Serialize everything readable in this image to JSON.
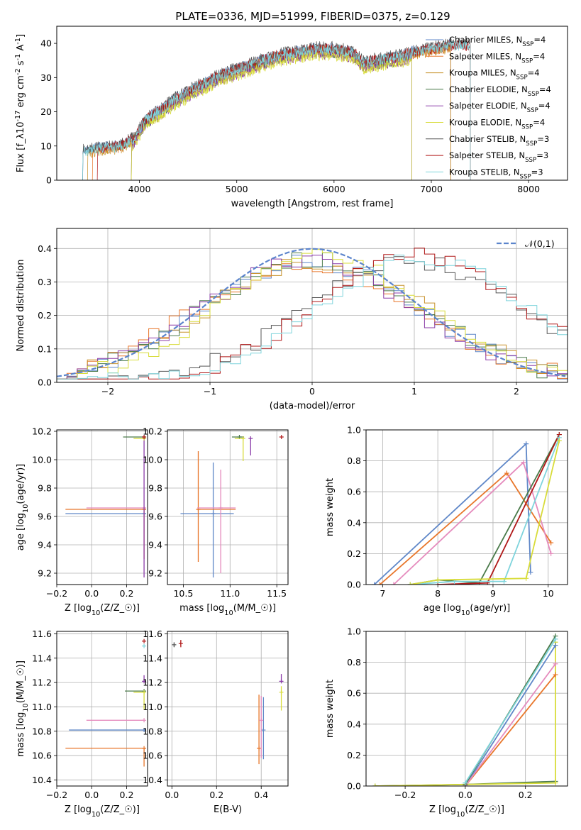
{
  "figure_title": "PLATE=0336, MJD=51999, FIBERID=0375, z=0.129",
  "chart_data": [
    {
      "id": "spectrum",
      "type": "line",
      "xlabel": "wavelength [Angstrom, rest frame]",
      "ylabel": "Flux [f$_\\lambda$10$^{-17}$ erg cm$^{-2}$ s$^{-1}$ A$^{-1}$]",
      "xlim": [
        3150,
        8400
      ],
      "ylim": [
        0,
        45
      ],
      "xticks": [
        4000,
        5000,
        6000,
        7000,
        8000
      ],
      "yticks": [
        0,
        10,
        20,
        30,
        40
      ],
      "grid": false,
      "legend_position": "top-right",
      "series": [
        {
          "name": "Chabrier MILES, N$_{SSP}$=4",
          "color": "#5f87c8",
          "start": 3400,
          "end": 7200,
          "offset": 0.3
        },
        {
          "name": "Salpeter MILES, N$_{SSP}$=4",
          "color": "#e8762a",
          "start": 3500,
          "end": 7200,
          "offset": 0.0
        },
        {
          "name": "Kroupa MILES, N$_{SSP}$=4",
          "color": "#c8922c",
          "start": 3450,
          "end": 7200,
          "offset": -0.2
        },
        {
          "name": "Chabrier ELODIE, N$_{SSP}$=4",
          "color": "#4a7a4a",
          "start": 3900,
          "end": 6800,
          "offset": -0.4
        },
        {
          "name": "Salpeter ELODIE, N$_{SSP}$=4",
          "color": "#8b3ca8",
          "start": 3900,
          "end": 6800,
          "offset": -0.6
        },
        {
          "name": "Kroupa ELODIE, N$_{SSP}$=4",
          "color": "#d8dc3a",
          "start": 3900,
          "end": 6800,
          "offset": -0.8
        },
        {
          "name": "Chabrier STELIB, N$_{SSP}$=3",
          "color": "#555555",
          "start": 3400,
          "end": 7400,
          "offset": 0.5
        },
        {
          "name": "Salpeter STELIB, N$_{SSP}$=3",
          "color": "#b01818",
          "start": 3550,
          "end": 7400,
          "offset": 0.2
        },
        {
          "name": "Kroupa STELIB, N$_{SSP}$=3",
          "color": "#7fd4dc",
          "start": 3400,
          "end": 7400,
          "offset": 0.1
        }
      ],
      "continuum": {
        "wavelength": [
          3400,
          3600,
          3800,
          3950,
          4050,
          4200,
          4400,
          4600,
          4800,
          5000,
          5200,
          5400,
          5600,
          5800,
          6000,
          6200,
          6300,
          6500,
          6700,
          6800,
          7000,
          7200,
          7400
        ],
        "flux": [
          8,
          9,
          9.5,
          12,
          17,
          20,
          24,
          27,
          30,
          32,
          34,
          36,
          37,
          38,
          38,
          37,
          34,
          35,
          36,
          37,
          38,
          39,
          39
        ]
      }
    },
    {
      "id": "residuals",
      "type": "histogram",
      "xlabel": "(data-model)/error",
      "ylabel": "Normed distribution",
      "xlim": [
        -2.5,
        2.5
      ],
      "ylim": [
        0,
        0.46
      ],
      "xticks": [
        -2,
        -1,
        0,
        1,
        2
      ],
      "yticks": [
        0.0,
        0.1,
        0.2,
        0.3,
        0.4
      ],
      "grid": true,
      "legend_position": "top-right",
      "legend_label": "$\\mathcal{N}(0,1)$",
      "reference_curve": {
        "name": "N(0,1)",
        "mean": 0,
        "sigma": 1,
        "color": "#5b84cc"
      },
      "bin_width": 0.1,
      "series": [
        {
          "color": "#5f87c8",
          "center": 0.0,
          "width": 1.05,
          "peak": 0.36
        },
        {
          "color": "#e8762a",
          "center": -0.05,
          "width": 1.1,
          "peak": 0.35
        },
        {
          "color": "#c8922c",
          "center": 0.05,
          "width": 1.08,
          "peak": 0.36
        },
        {
          "color": "#4a7a4a",
          "center": 0.0,
          "width": 1.05,
          "peak": 0.37
        },
        {
          "color": "#8b3ca8",
          "center": -0.05,
          "width": 1.05,
          "peak": 0.36
        },
        {
          "color": "#d8dc3a",
          "center": 0.1,
          "width": 1.0,
          "peak": 0.38
        },
        {
          "color": "#555555",
          "center": 1.0,
          "width": 1.05,
          "peak": 0.36
        },
        {
          "color": "#b01818",
          "center": 1.05,
          "width": 1.0,
          "peak": 0.38
        },
        {
          "color": "#7fd4dc",
          "center": 1.1,
          "width": 1.05,
          "peak": 0.37
        }
      ]
    },
    {
      "id": "age_vs_Z",
      "type": "errorbar",
      "xlabel": "Z [log$_{10}$($Z/Z_\\odot$)]",
      "ylabel": "age  [log$_{10}$($age/yr$)]",
      "xlim": [
        -0.2,
        0.32
      ],
      "ylim": [
        9.12,
        10.21
      ],
      "xticks": [
        -0.2,
        0.0,
        0.2
      ],
      "yticks": [
        9.2,
        9.4,
        9.6,
        9.8,
        10.0,
        10.2
      ],
      "grid": true,
      "points": [
        {
          "color": "#5f87c8",
          "x": 0.3,
          "y": 9.62,
          "xerr": [
            0.45,
            0.01
          ],
          "yerr": [
            0.0,
            0.0
          ]
        },
        {
          "color": "#e8762a",
          "x": 0.3,
          "y": 9.65,
          "xerr": [
            0.45,
            0.01
          ],
          "yerr": [
            0.35,
            0.0
          ]
        },
        {
          "color": "#e58bbd",
          "x": 0.3,
          "y": 9.66,
          "xerr": [
            0.33,
            0.0
          ],
          "yerr": [
            0.0,
            0.0
          ]
        },
        {
          "color": "#4a7a4a",
          "x": 0.3,
          "y": 10.16,
          "xerr": [
            0.12,
            0.0
          ],
          "yerr": [
            0.0,
            0.0
          ]
        },
        {
          "color": "#8b3ca8",
          "x": 0.3,
          "y": 10.15,
          "xerr": [
            0.0,
            0.0
          ],
          "yerr": [
            0.98,
            0.0
          ]
        },
        {
          "color": "#d8dc3a",
          "x": 0.3,
          "y": 10.15,
          "xerr": [
            0.06,
            0.0
          ],
          "yerr": [
            0.0,
            0.0
          ]
        },
        {
          "color": "#b01818",
          "x": 0.3,
          "y": 10.16,
          "xerr": [
            0.0,
            0.0
          ],
          "yerr": [
            0.0,
            0.0
          ]
        }
      ]
    },
    {
      "id": "age_vs_mass",
      "type": "errorbar",
      "xlabel": "mass [log$_{10}$($M/M_\\odot$)]",
      "ylabel": "",
      "xlim": [
        10.33,
        11.62
      ],
      "ylim": [
        9.12,
        10.21
      ],
      "xticks": [
        10.5,
        11.0,
        11.5
      ],
      "yticks": [
        9.2,
        9.4,
        9.6,
        9.8,
        10.0,
        10.2
      ],
      "grid": true,
      "points": [
        {
          "color": "#5f87c8",
          "x": 10.82,
          "y": 9.62,
          "xerr": [
            0.35,
            0.22
          ],
          "yerr": [
            0.45,
            0.36
          ]
        },
        {
          "color": "#e8762a",
          "x": 10.66,
          "y": 9.65,
          "xerr": [
            0.02,
            0.4
          ],
          "yerr": [
            0.37,
            0.41
          ]
        },
        {
          "color": "#e58bbd",
          "x": 10.9,
          "y": 9.66,
          "xerr": [
            0.25,
            0.16
          ],
          "yerr": [
            0.46,
            0.27
          ]
        },
        {
          "color": "#4a7a4a",
          "x": 11.1,
          "y": 10.16,
          "xerr": [
            0.08,
            0.05
          ],
          "yerr": [
            0.0,
            0.0
          ]
        },
        {
          "color": "#8b3ca8",
          "x": 11.22,
          "y": 10.15,
          "xerr": [
            0.0,
            0.0
          ],
          "yerr": [
            0.12,
            0.0
          ]
        },
        {
          "color": "#d8dc3a",
          "x": 11.14,
          "y": 10.15,
          "xerr": [
            0.09,
            0.0
          ],
          "yerr": [
            0.16,
            0.0
          ]
        },
        {
          "color": "#b01818",
          "x": 11.55,
          "y": 10.16,
          "xerr": [
            0.0,
            0.0
          ],
          "yerr": [
            0.0,
            0.0
          ]
        }
      ]
    },
    {
      "id": "weight_vs_age",
      "type": "line",
      "xlabel": "age  [log$_{10}$($age/yr$)]",
      "ylabel": "mass weight",
      "xlim": [
        6.7,
        10.35
      ],
      "ylim": [
        0,
        1.0
      ],
      "xticks": [
        7,
        8,
        9,
        10
      ],
      "yticks": [
        0.0,
        0.2,
        0.4,
        0.6,
        0.8,
        1.0
      ],
      "grid": true,
      "series": [
        {
          "color": "#5f87c8",
          "x": [
            6.85,
            9.6,
            9.68
          ],
          "y": [
            0.0,
            0.91,
            0.08
          ]
        },
        {
          "color": "#e8762a",
          "x": [
            6.95,
            9.25,
            10.05
          ],
          "y": [
            0.0,
            0.72,
            0.27
          ]
        },
        {
          "color": "#e58bbd",
          "x": [
            7.2,
            9.55,
            10.05
          ],
          "y": [
            0.0,
            0.79,
            0.2
          ]
        },
        {
          "color": "#4a7a4a",
          "x": [
            7.5,
            8.0,
            8.75,
            10.2
          ],
          "y": [
            0.0,
            0.03,
            0.01,
            0.97
          ]
        },
        {
          "color": "#b01818",
          "x": [
            8.0,
            8.9,
            10.2
          ],
          "y": [
            0.0,
            0.01,
            0.97
          ]
        },
        {
          "color": "#7fd4dc",
          "x": [
            7.5,
            8.3,
            9.2,
            10.2
          ],
          "y": [
            0.0,
            0.02,
            0.02,
            0.95
          ]
        },
        {
          "color": "#d8dc3a",
          "x": [
            7.5,
            8.0,
            9.6,
            10.2
          ],
          "y": [
            0.0,
            0.03,
            0.04,
            0.93
          ]
        }
      ]
    },
    {
      "id": "mass_vs_Z",
      "type": "errorbar",
      "xlabel": "Z [log$_{10}$($Z/Z_\\odot$)]",
      "ylabel": "mass [log$_{10}$($M/M_\\odot$)]",
      "xlim": [
        -0.2,
        0.32
      ],
      "ylim": [
        10.35,
        11.62
      ],
      "xticks": [
        -0.2,
        0.0,
        0.2
      ],
      "yticks": [
        10.4,
        10.6,
        10.8,
        11.0,
        11.2,
        11.4,
        11.6
      ],
      "grid": true,
      "points": [
        {
          "color": "#5f87c8",
          "x": 0.3,
          "y": 10.81,
          "xerr": [
            0.43,
            0.01
          ],
          "yerr": [
            0.0,
            0.0
          ]
        },
        {
          "color": "#e8762a",
          "x": 0.3,
          "y": 10.66,
          "xerr": [
            0.45,
            0.01
          ],
          "yerr": [
            0.15,
            0.0
          ]
        },
        {
          "color": "#e58bbd",
          "x": 0.3,
          "y": 10.89,
          "xerr": [
            0.33,
            0.0
          ],
          "yerr": [
            0.0,
            0.0
          ]
        },
        {
          "color": "#4a7a4a",
          "x": 0.3,
          "y": 11.13,
          "xerr": [
            0.11,
            0.0
          ],
          "yerr": [
            0.0,
            0.0
          ]
        },
        {
          "color": "#8b3ca8",
          "x": 0.3,
          "y": 11.21,
          "xerr": [
            0.0,
            0.0
          ],
          "yerr": [
            0.0,
            0.05
          ]
        },
        {
          "color": "#d8dc3a",
          "x": 0.3,
          "y": 11.12,
          "xerr": [
            0.06,
            0.0
          ],
          "yerr": [
            0.14,
            0.0
          ]
        },
        {
          "color": "#b01818",
          "x": 0.3,
          "y": 11.54,
          "xerr": [
            0.0,
            0.0
          ],
          "yerr": [
            0.0,
            0.0
          ]
        },
        {
          "color": "#7fd4dc",
          "x": 0.3,
          "y": 11.5,
          "xerr": [
            0.0,
            0.0
          ],
          "yerr": [
            0.0,
            0.0
          ]
        }
      ]
    },
    {
      "id": "mass_vs_ebv",
      "type": "errorbar",
      "xlabel": "E(B-V)",
      "ylabel": "",
      "xlim": [
        -0.02,
        0.52
      ],
      "ylim": [
        10.35,
        11.62
      ],
      "xticks": [
        0.0,
        0.2,
        0.4
      ],
      "yticks": [
        10.4,
        10.6,
        10.8,
        11.0,
        11.2,
        11.4,
        11.6
      ],
      "grid": true,
      "points": [
        {
          "color": "#5f87c8",
          "x": 0.41,
          "y": 10.81,
          "xerr": [
            0.0,
            0.0
          ],
          "yerr": [
            0.24,
            0.27
          ]
        },
        {
          "color": "#e8762a",
          "x": 0.39,
          "y": 10.66,
          "xerr": [
            0.0,
            0.0
          ],
          "yerr": [
            0.13,
            0.44
          ]
        },
        {
          "color": "#e58bbd",
          "x": 0.4,
          "y": 10.89,
          "xerr": [
            0.0,
            0.0
          ],
          "yerr": [
            0.31,
            0.2
          ]
        },
        {
          "color": "#8b3ca8",
          "x": 0.49,
          "y": 11.21,
          "xerr": [
            0.0,
            0.0
          ],
          "yerr": [
            0.0,
            0.06
          ]
        },
        {
          "color": "#d8dc3a",
          "x": 0.49,
          "y": 11.12,
          "xerr": [
            0.0,
            0.0
          ],
          "yerr": [
            0.15,
            0.05
          ]
        },
        {
          "color": "#b01818",
          "x": 0.04,
          "y": 11.52,
          "xerr": [
            0.0,
            0.0
          ],
          "yerr": [
            0.03,
            0.03
          ]
        },
        {
          "color": "#555555",
          "x": 0.01,
          "y": 11.51,
          "xerr": [
            0.0,
            0.0
          ],
          "yerr": [
            0.02,
            0.02
          ]
        }
      ]
    },
    {
      "id": "weight_vs_Z",
      "type": "line",
      "xlabel": "Z [log$_{10}$($Z/Z_\\odot$)]",
      "ylabel": "mass weight",
      "xlim": [
        -0.33,
        0.34
      ],
      "ylim": [
        0,
        1.0
      ],
      "xticks": [
        -0.2,
        0.0,
        0.2
      ],
      "yticks": [
        0.0,
        0.2,
        0.4,
        0.6,
        0.8,
        1.0
      ],
      "grid": true,
      "series": [
        {
          "color": "#4a7a4a",
          "x": [
            -0.3,
            0.0,
            0.3
          ],
          "y": [
            0.0,
            0.01,
            0.03
          ]
        },
        {
          "color": "#d8dc3a",
          "x": [
            -0.3,
            0.0,
            0.3,
            0.3
          ],
          "y": [
            0.0,
            0.01,
            0.02,
            0.93
          ]
        },
        {
          "color": "#5f87c8",
          "x": [
            0.0,
            0.3
          ],
          "y": [
            0.0,
            0.91
          ]
        },
        {
          "color": "#e8762a",
          "x": [
            0.0,
            0.3
          ],
          "y": [
            0.0,
            0.72
          ]
        },
        {
          "color": "#e58bbd",
          "x": [
            0.0,
            0.3
          ],
          "y": [
            0.0,
            0.79
          ]
        },
        {
          "color": "#4a7a4a",
          "x": [
            0.0,
            0.3
          ],
          "y": [
            0.01,
            0.97
          ]
        },
        {
          "color": "#7fd4dc",
          "x": [
            0.0,
            0.3
          ],
          "y": [
            0.02,
            0.95
          ]
        }
      ]
    }
  ]
}
